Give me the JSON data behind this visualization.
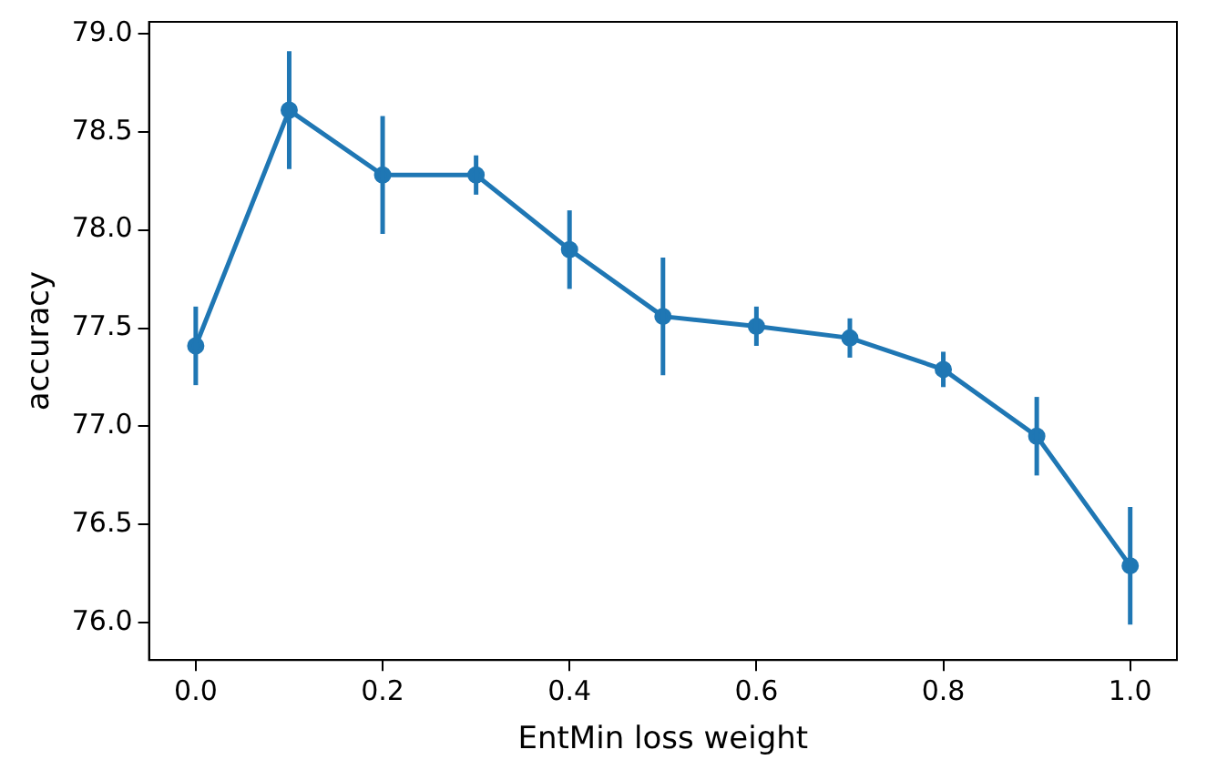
{
  "chart_data": {
    "type": "line",
    "xlabel": "EntMin loss weight",
    "ylabel": "accuracy",
    "x": [
      0.0,
      0.1,
      0.2,
      0.3,
      0.4,
      0.5,
      0.6,
      0.7,
      0.8,
      0.9,
      1.0
    ],
    "series": [
      {
        "color": "#1f77b4",
        "values": [
          77.41,
          78.61,
          78.28,
          78.28,
          77.9,
          77.56,
          77.51,
          77.45,
          77.29,
          76.95,
          76.29
        ],
        "errors": [
          0.2,
          0.3,
          0.3,
          0.1,
          0.2,
          0.3,
          0.1,
          0.1,
          0.09,
          0.2,
          0.3
        ]
      }
    ],
    "xlim": [
      -0.05,
      1.05
    ],
    "ylim": [
      75.81,
      79.06
    ],
    "xticks": [
      {
        "value": 0,
        "label": "0.0"
      },
      0.2,
      0.4,
      0.6,
      0.8,
      {
        "value": 1,
        "label": "1.0"
      }
    ],
    "yticks": [
      {
        "value": 76,
        "label": "76.0"
      },
      76.5,
      {
        "value": 77,
        "label": "77.0"
      },
      77.5,
      {
        "value": 78,
        "label": "78.0"
      },
      78.5,
      {
        "value": 79,
        "label": "79.0"
      }
    ],
    "grid": false,
    "legend": false,
    "marker": "circle",
    "line_style": "solid"
  }
}
